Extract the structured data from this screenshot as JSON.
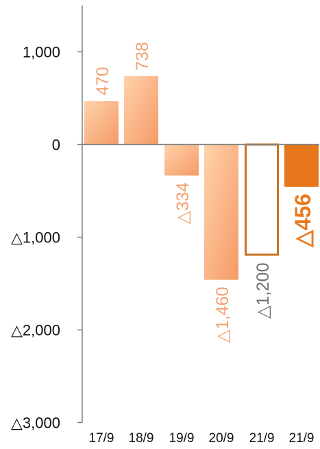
{
  "chart_data": {
    "type": "bar",
    "categories": [
      "17/9",
      "18/9",
      "19/9",
      "20/9",
      "21/9",
      "21/9"
    ],
    "values": [
      470,
      738,
      -334,
      -1460,
      -1200,
      -456
    ],
    "data_labels": [
      "470",
      "738",
      "△334",
      "△1,460",
      "△1,200",
      "△456"
    ],
    "bar_styles": [
      "gradient",
      "gradient",
      "gradient",
      "gradient",
      "outline",
      "solid"
    ],
    "label_colors": [
      "#f4a070",
      "#f4a070",
      "#f4a070",
      "#f4a070",
      "#707070",
      "#e87a1e"
    ],
    "label_emphasis": [
      false,
      false,
      false,
      false,
      false,
      true
    ],
    "ylim": [
      -3000,
      1500
    ],
    "yticks": [
      {
        "value": 1000,
        "label": "1,000"
      },
      {
        "value": 0,
        "label": "0"
      },
      {
        "value": -1000,
        "label": "△1,000"
      },
      {
        "value": -2000,
        "label": "△2,000"
      },
      {
        "value": -3000,
        "label": "△3,000"
      }
    ],
    "colors": {
      "gradient_light": "#ffd2ac",
      "gradient_dark": "#f59a66",
      "solid": "#e8761a",
      "outline_stroke": "#c97123",
      "axis": "#7f7f7f"
    },
    "grid": false,
    "legend": "none"
  }
}
